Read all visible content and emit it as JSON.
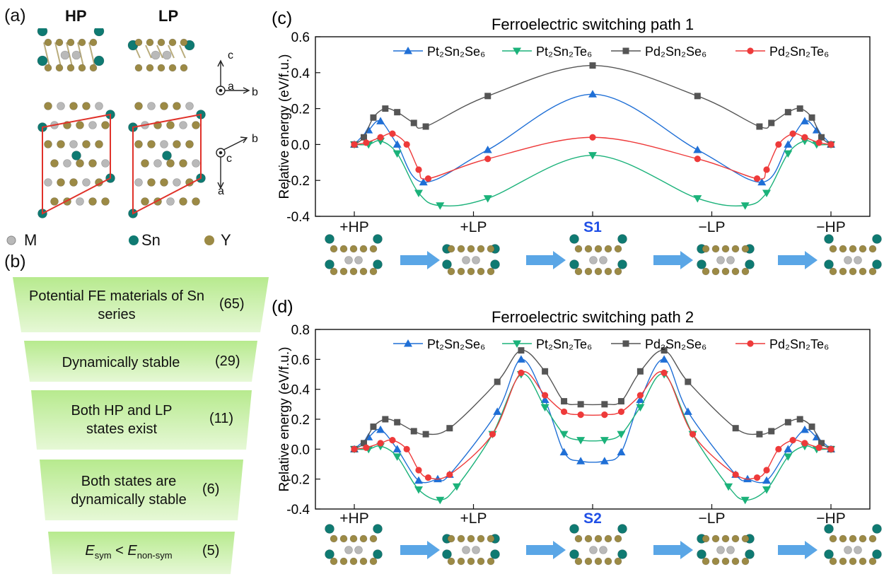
{
  "colors": {
    "pt2sn2se6": "#1f6fd6",
    "pt2sn2te6": "#1bb27a",
    "pd2sn2se6": "#555555",
    "pd2sn2te6": "#ee3a3a",
    "sn": "#0f7a72",
    "y": "#9c8a45",
    "m": "#b9b9b9",
    "arrow": "#5aa6e6",
    "s_label": "#1f4fe6",
    "funnel": "#c8efaa"
  },
  "panel_a": {
    "label": "(a)",
    "hp": "HP",
    "lp": "LP",
    "axis_c": "c",
    "axis_a": "a",
    "axis_b": "b",
    "legend": {
      "m": "M",
      "sn": "Sn",
      "y": "Y"
    }
  },
  "panel_b": {
    "label": "(b)",
    "stages": [
      {
        "text": "Potential FE materials of Sn series",
        "count": "(65)"
      },
      {
        "text": "Dynamically stable",
        "count": "(29)"
      },
      {
        "text": "Both HP and LP states exist",
        "count": "(11)"
      },
      {
        "text": "Both states are dynamically stable",
        "count": "(6)"
      },
      {
        "text": "E_sym < E_non-sym",
        "count": "(5)"
      }
    ]
  },
  "chart_data": [
    {
      "panel": "(c)",
      "type": "line",
      "title": "Ferroelectric switching path 1",
      "ylabel": "Relative energy (eV/f.u.)",
      "ylim": [
        -0.4,
        0.6
      ],
      "yticks": [
        "0.6",
        "0.4",
        "0.2",
        "0.0",
        "-0.2",
        "-0.4"
      ],
      "x_ticks": [
        "+HP",
        "+LP",
        "S1",
        "−LP",
        "−HP"
      ],
      "highlight_tick": "S1",
      "legend_position": "top",
      "series": [
        {
          "name": "Pt₂Sn₂Se₆",
          "marker": "triangle-up",
          "values": [
            0,
            0.08,
            0.13,
            0.0,
            -0.21,
            -0.03,
            0.28,
            -0.03,
            -0.21,
            0.0,
            0.13,
            0.08,
            0
          ],
          "x": [
            0,
            0.06,
            0.11,
            0.18,
            0.29,
            0.56,
            1.0,
            1.44,
            1.71,
            1.82,
            1.89,
            1.94,
            2.0
          ]
        },
        {
          "name": "Pt₂Sn₂Te₆",
          "marker": "triangle-down",
          "values": [
            0,
            0.0,
            0.02,
            -0.05,
            -0.27,
            -0.34,
            -0.3,
            -0.06,
            -0.3,
            -0.34,
            -0.27,
            -0.05,
            0.02,
            0.0,
            0
          ],
          "x": [
            0,
            0.06,
            0.11,
            0.18,
            0.27,
            0.36,
            0.56,
            1.0,
            1.44,
            1.64,
            1.73,
            1.82,
            1.89,
            1.94,
            2.0
          ]
        },
        {
          "name": "Pd₂Sn₂Se₆",
          "marker": "square",
          "values": [
            0,
            0.04,
            0.15,
            0.2,
            0.18,
            0.12,
            0.1,
            0.27,
            0.44,
            0.27,
            0.1,
            0.12,
            0.18,
            0.2,
            0.15,
            0.04,
            0
          ],
          "x": [
            0,
            0.04,
            0.08,
            0.13,
            0.18,
            0.25,
            0.3,
            0.56,
            1.0,
            1.44,
            1.7,
            1.75,
            1.82,
            1.87,
            1.92,
            1.96,
            2.0
          ]
        },
        {
          "name": "Pd₂Sn₂Te₆",
          "marker": "circle",
          "values": [
            0,
            0.01,
            0.04,
            0.06,
            0.0,
            -0.14,
            -0.19,
            -0.08,
            0.04,
            -0.08,
            -0.19,
            -0.14,
            0.0,
            0.06,
            0.04,
            0.01,
            0
          ],
          "x": [
            0,
            0.05,
            0.11,
            0.16,
            0.22,
            0.27,
            0.31,
            0.56,
            1.0,
            1.44,
            1.69,
            1.73,
            1.78,
            1.84,
            1.89,
            1.95,
            2.0
          ]
        }
      ]
    },
    {
      "panel": "(d)",
      "type": "line",
      "title": "Ferroelectric switching path 2",
      "ylabel": "Relative energy (eV/f.u.)",
      "ylim": [
        -0.4,
        0.8
      ],
      "yticks": [
        "0.8",
        "0.6",
        "0.4",
        "0.2",
        "0.0",
        "-0.2",
        "-0.4"
      ],
      "x_ticks": [
        "+HP",
        "+LP",
        "S2",
        "−LP",
        "−HP"
      ],
      "highlight_tick": "S2",
      "legend_position": "top",
      "series": [
        {
          "name": "Pt₂Sn₂Se₆",
          "marker": "triangle-up",
          "values": [
            0,
            0.08,
            0.13,
            0.0,
            -0.21,
            -0.2,
            -0.17,
            0.25,
            0.6,
            0.33,
            -0.02,
            -0.08,
            -0.08,
            -0.02,
            0.33,
            0.6,
            0.25,
            -0.17,
            -0.2,
            -0.21,
            0.0,
            0.13,
            0.08,
            0
          ],
          "x": [
            0,
            0.06,
            0.11,
            0.18,
            0.27,
            0.35,
            0.4,
            0.6,
            0.7,
            0.8,
            0.88,
            0.95,
            1.05,
            1.12,
            1.2,
            1.3,
            1.4,
            1.6,
            1.65,
            1.73,
            1.82,
            1.89,
            1.94,
            2.0
          ]
        },
        {
          "name": "Pt₂Sn₂Te₆",
          "marker": "triangle-down",
          "values": [
            0,
            0.0,
            0.02,
            -0.05,
            -0.27,
            -0.34,
            -0.25,
            0.1,
            0.5,
            0.28,
            0.1,
            0.06,
            0.06,
            0.1,
            0.28,
            0.5,
            0.1,
            -0.25,
            -0.34,
            -0.27,
            -0.05,
            0.02,
            0.0,
            0
          ],
          "x": [
            0,
            0.06,
            0.11,
            0.18,
            0.27,
            0.36,
            0.43,
            0.58,
            0.7,
            0.8,
            0.88,
            0.95,
            1.05,
            1.12,
            1.2,
            1.3,
            1.42,
            1.57,
            1.64,
            1.73,
            1.82,
            1.89,
            1.94,
            2.0
          ]
        },
        {
          "name": "Pd₂Sn₂Se₆",
          "marker": "square",
          "values": [
            0,
            0.04,
            0.15,
            0.2,
            0.18,
            0.12,
            0.1,
            0.14,
            0.45,
            0.66,
            0.52,
            0.32,
            0.3,
            0.3,
            0.32,
            0.52,
            0.66,
            0.45,
            0.14,
            0.1,
            0.12,
            0.18,
            0.2,
            0.15,
            0.04,
            0
          ],
          "x": [
            0,
            0.04,
            0.08,
            0.13,
            0.18,
            0.25,
            0.3,
            0.4,
            0.6,
            0.7,
            0.8,
            0.88,
            0.95,
            1.05,
            1.12,
            1.2,
            1.3,
            1.4,
            1.6,
            1.7,
            1.75,
            1.82,
            1.87,
            1.92,
            1.96,
            2.0
          ]
        },
        {
          "name": "Pd₂Sn₂Te₆",
          "marker": "circle",
          "values": [
            0,
            0.01,
            0.04,
            0.06,
            0.0,
            -0.14,
            -0.19,
            -0.17,
            0.1,
            0.51,
            0.36,
            0.25,
            0.23,
            0.23,
            0.25,
            0.36,
            0.51,
            0.1,
            -0.17,
            -0.19,
            -0.14,
            0.0,
            0.06,
            0.04,
            0.01,
            0
          ],
          "x": [
            0,
            0.05,
            0.11,
            0.16,
            0.22,
            0.27,
            0.31,
            0.4,
            0.58,
            0.7,
            0.8,
            0.88,
            0.95,
            1.05,
            1.12,
            1.2,
            1.3,
            1.42,
            1.6,
            1.69,
            1.73,
            1.78,
            1.84,
            1.89,
            1.95,
            2.0
          ]
        }
      ]
    }
  ]
}
